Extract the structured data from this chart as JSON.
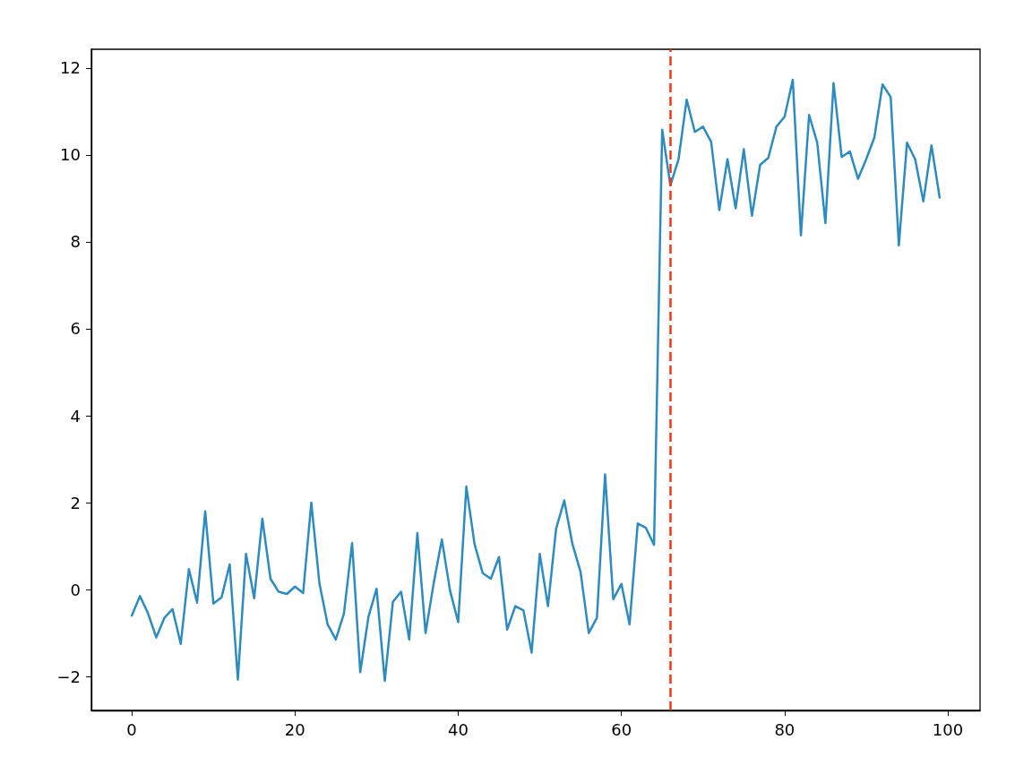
{
  "chart_data": {
    "type": "line",
    "x": [
      0,
      1,
      2,
      3,
      4,
      5,
      6,
      7,
      8,
      9,
      10,
      11,
      12,
      13,
      14,
      15,
      16,
      17,
      18,
      19,
      20,
      21,
      22,
      23,
      24,
      25,
      26,
      27,
      28,
      29,
      30,
      31,
      32,
      33,
      34,
      35,
      36,
      37,
      38,
      39,
      40,
      41,
      42,
      43,
      44,
      45,
      46,
      47,
      48,
      49,
      50,
      51,
      52,
      53,
      54,
      55,
      56,
      57,
      58,
      59,
      60,
      61,
      62,
      63,
      64,
      65,
      66,
      67,
      68,
      69,
      70,
      71,
      72,
      73,
      74,
      75,
      76,
      77,
      78,
      79,
      80,
      81,
      82,
      83,
      84,
      85,
      86,
      87,
      88,
      89,
      90,
      91,
      92,
      93,
      94,
      95,
      96,
      97,
      98,
      99
    ],
    "series": [
      {
        "color": "#2e8bc0",
        "values": [
          -0.6,
          -0.15,
          -0.55,
          -1.1,
          -0.65,
          -0.45,
          -1.25,
          0.47,
          -0.3,
          1.8,
          -0.32,
          -0.18,
          0.58,
          -2.07,
          0.82,
          -0.2,
          1.63,
          0.25,
          -0.05,
          -0.1,
          0.07,
          -0.08,
          2.0,
          0.14,
          -0.8,
          -1.15,
          -0.55,
          1.07,
          -1.9,
          -0.63,
          0.02,
          -2.1,
          -0.28,
          -0.05,
          -1.15,
          1.3,
          -1.0,
          0.15,
          1.15,
          -0.02,
          -0.75,
          2.37,
          1.05,
          0.38,
          0.25,
          0.75,
          -0.92,
          -0.38,
          -0.48,
          -1.45,
          0.82,
          -0.38,
          1.4,
          2.05,
          1.05,
          0.4,
          -1.0,
          -0.65,
          2.65,
          -0.22,
          0.13,
          -0.8,
          1.52,
          1.42,
          1.03,
          10.58,
          9.3,
          9.9,
          11.27,
          10.53,
          10.65,
          10.3,
          8.73,
          9.9,
          8.77,
          10.13,
          8.6,
          9.77,
          9.93,
          10.65,
          10.88,
          11.73,
          8.15,
          10.92,
          10.28,
          8.43,
          11.65,
          9.95,
          10.08,
          9.45,
          9.9,
          10.4,
          11.62,
          11.33,
          7.92,
          10.28,
          9.9,
          8.93,
          10.22,
          9.02
        ]
      }
    ],
    "xlim": [
      -4.95,
      103.95
    ],
    "ylim": [
      -2.78,
      12.43
    ],
    "xticks": [
      0,
      20,
      40,
      60,
      80,
      100
    ],
    "yticks": [
      {
        "value": -2,
        "label": "−2"
      },
      0,
      2,
      4,
      6,
      8,
      10,
      12
    ],
    "ref_lines": [
      {
        "axis": "x",
        "value": 66,
        "color": "#f03a17",
        "line_style": "dashed"
      }
    ],
    "grid": false,
    "marker": "none",
    "line_style": "solid"
  }
}
